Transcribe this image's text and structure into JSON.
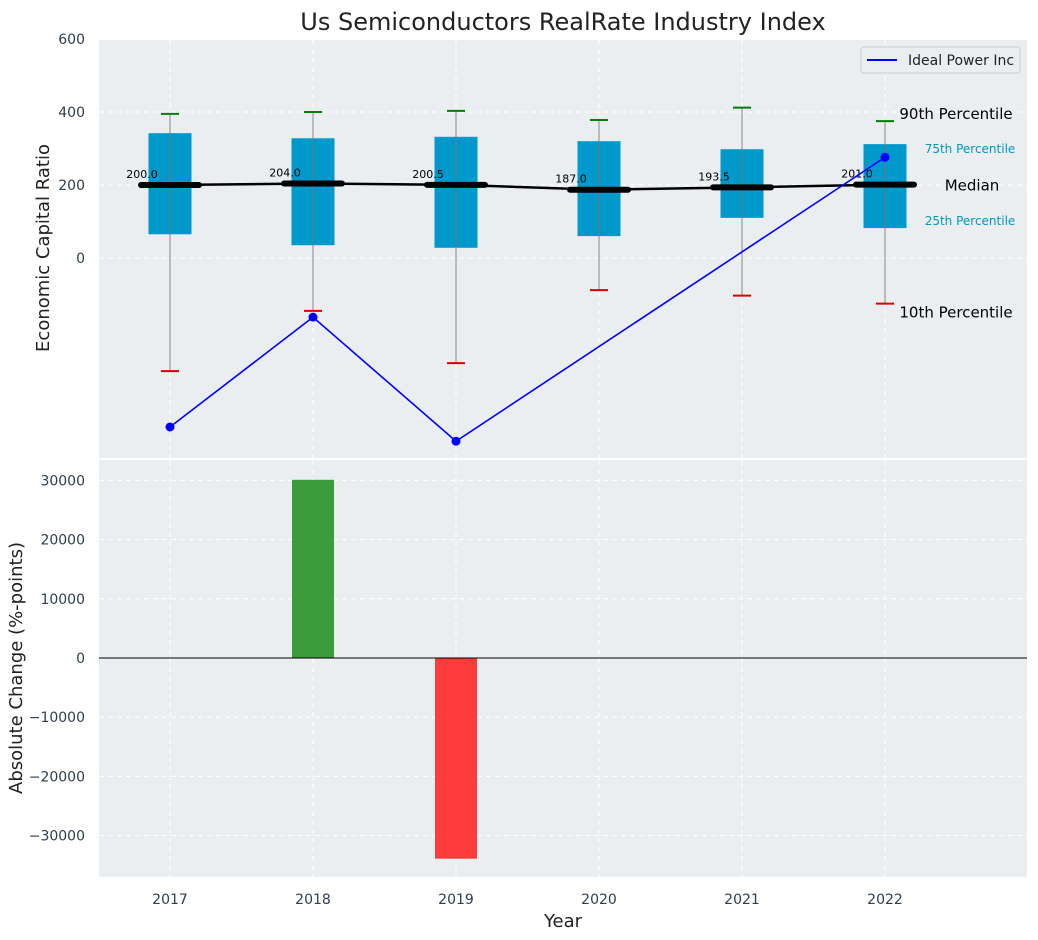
{
  "chart_data": [
    {
      "type": "box",
      "title": "Us Semiconductors RealRate Industry Index",
      "ylabel": "Economic Capital Ratio",
      "xlabel": "",
      "ylim": [
        -530,
        600
      ],
      "yticks": [
        0,
        200,
        400,
        600
      ],
      "categories": [
        "2017",
        "2018",
        "2019",
        "2020",
        "2021",
        "2022"
      ],
      "boxes": [
        {
          "year": "2017",
          "p10": -310,
          "p25": 65,
          "median": 200.0,
          "p75": 342,
          "p90": 395
        },
        {
          "year": "2018",
          "p10": -145,
          "p25": 35,
          "median": 204.0,
          "p75": 328,
          "p90": 400
        },
        {
          "year": "2019",
          "p10": -288,
          "p25": 28,
          "median": 200.5,
          "p75": 332,
          "p90": 403
        },
        {
          "year": "2020",
          "p10": -88,
          "p25": 60,
          "median": 187.0,
          "p75": 320,
          "p90": 378
        },
        {
          "year": "2021",
          "p10": -103,
          "p25": 110,
          "median": 193.5,
          "p75": 298,
          "p90": 412
        },
        {
          "year": "2022",
          "p10": -125,
          "p25": 82,
          "median": 201.0,
          "p75": 312,
          "p90": 375
        }
      ],
      "median_labels": [
        "200.0",
        "204.0",
        "200.5",
        "187.0",
        "193.5",
        "201.0"
      ],
      "series": [
        {
          "name": "Ideal Power Inc",
          "x": [
            "2017",
            "2018",
            "2019",
            "2022"
          ],
          "values": [
            -463,
            -162,
            -502,
            276
          ]
        }
      ],
      "percentile_labels": {
        "p90": "90th Percentile",
        "p75": "75th Percentile",
        "median": "Median",
        "p25": "25th Percentile",
        "p10": "10th Percentile"
      },
      "legend": {
        "placement": "top-right"
      },
      "grid": true
    },
    {
      "type": "bar",
      "title": "",
      "ylabel": "Absolute Change (%-points)",
      "xlabel": "Year",
      "categories": [
        "2017",
        "2018",
        "2019",
        "2020",
        "2021",
        "2022"
      ],
      "values": [
        null,
        30100,
        -33900,
        null,
        null,
        null
      ],
      "ylim": [
        -37000,
        33000
      ],
      "yticks": [
        -30000,
        -20000,
        -10000,
        0,
        10000,
        20000,
        30000
      ],
      "grid": true
    }
  ],
  "colors": {
    "background": "#eaeef0",
    "box_fill": "#0099cc",
    "median_line": "#000000",
    "series_line": "#0000ff",
    "whisker_top": "#008000",
    "whisker_bottom": "#dd0000",
    "bar_positive": "#3c9c3c",
    "bar_negative": "#ff3c3c",
    "percentile_small": "#0099bb"
  }
}
